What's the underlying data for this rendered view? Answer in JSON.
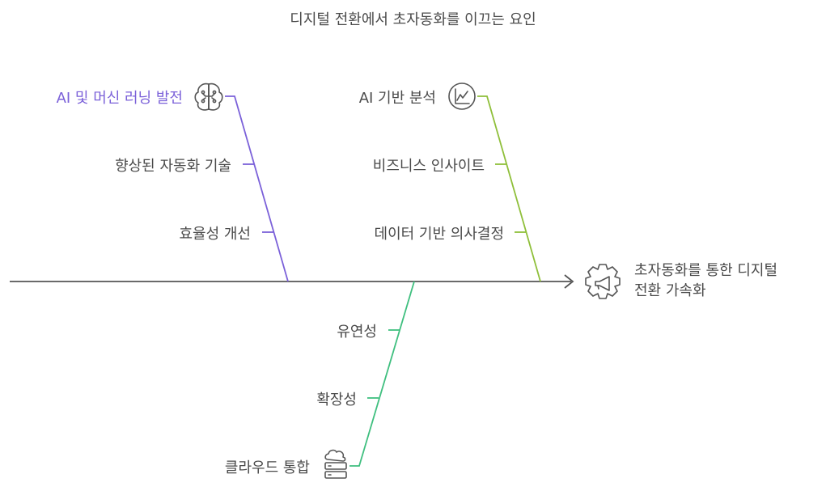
{
  "title": "디지털 전환에서 초자동화를 이끄는 요인",
  "effect": {
    "line1": "초자동화를 통한 디지털",
    "line2": "전환 가속화",
    "icon": "megaphone-gear-icon"
  },
  "branches": [
    {
      "label": "AI 및 머신 러닝 발전",
      "color": "#7b61d9",
      "icon": "brain-icon",
      "causes": [
        "향상된 자동화 기술",
        "효율성 개선"
      ]
    },
    {
      "label": "AI 기반 분석",
      "color": "#8fbf3a",
      "icon": "line-chart-icon",
      "causes": [
        "비즈니스 인사이트",
        "데이터 기반 의사결정"
      ]
    },
    {
      "label": "클라우드 통합",
      "color": "#3fbf7f",
      "icon": "cloud-server-icon",
      "causes": [
        "유연성",
        "확장성"
      ]
    }
  ]
}
